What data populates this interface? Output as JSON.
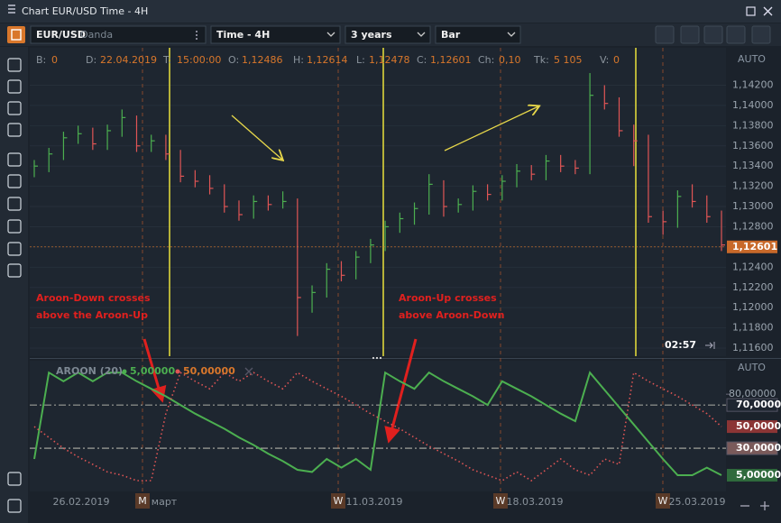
{
  "window": {
    "title": "Chart EUR/USD Time - 4H"
  },
  "toolbar": {
    "symbol": "EUR/USD",
    "broker": "Oanda",
    "timeframe": "Time - 4H",
    "period": "3 years",
    "chart_style": "Bar"
  },
  "info_bar": [
    {
      "k": "B:",
      "v": "0"
    },
    {
      "k": "D:",
      "v": "22.04.2019"
    },
    {
      "k": "T:",
      "v": "15:00:00"
    },
    {
      "k": "O:",
      "v": "1,12486"
    },
    {
      "k": "H:",
      "v": "1,12614"
    },
    {
      "k": "L:",
      "v": "1,12478"
    },
    {
      "k": "C:",
      "v": "1,12601"
    },
    {
      "k": "Ch:",
      "v": "0,10"
    },
    {
      "k": "Tk:",
      "v": "5 105"
    },
    {
      "k": "V:",
      "v": "0"
    }
  ],
  "scale_mode": [
    "AUTO",
    "AUTO"
  ],
  "timer": "02:57",
  "annotations": [
    {
      "lines": [
        "Aroon-Down crosses",
        "above the Aroon-Up"
      ]
    },
    {
      "lines": [
        "Aroon-Up crosses",
        "above Aroon-Down"
      ]
    }
  ],
  "period_markers": [
    "M",
    "W",
    "W",
    "W"
  ],
  "x_labels": [
    "26.02.2019",
    "март",
    "11.03.2019",
    "18.03.2019",
    "25.03.2019"
  ],
  "chart_data": [
    {
      "type": "ohlc",
      "up_color": "#4caf50",
      "down_color": "#e05555",
      "high": [
        1.1346,
        1.1358,
        1.1374,
        1.138,
        1.1378,
        1.1381,
        1.1396,
        1.139,
        1.1371,
        1.1371,
        1.1356,
        1.1336,
        1.1331,
        1.1322,
        1.1306,
        1.1311,
        1.1311,
        1.1315,
        1.1308,
        1.1222,
        1.1244,
        1.1246,
        1.1256,
        1.1268,
        1.1286,
        1.1294,
        1.1304,
        1.1332,
        1.1326,
        1.1308,
        1.1321,
        1.1322,
        1.1331,
        1.1342,
        1.1341,
        1.1351,
        1.1351,
        1.1346,
        1.1432,
        1.142,
        1.1408,
        1.1381,
        1.1371,
        1.1296,
        1.1316,
        1.1322,
        1.1311,
        1.1296
      ],
      "low": [
        1.1329,
        1.1334,
        1.1346,
        1.1362,
        1.1356,
        1.1356,
        1.1369,
        1.1354,
        1.1354,
        1.1346,
        1.1324,
        1.1319,
        1.1312,
        1.1294,
        1.1286,
        1.1288,
        1.1296,
        1.1298,
        1.1172,
        1.1195,
        1.121,
        1.1226,
        1.1228,
        1.1244,
        1.1256,
        1.1274,
        1.1282,
        1.1292,
        1.129,
        1.1294,
        1.1296,
        1.1306,
        1.1306,
        1.1319,
        1.1326,
        1.1326,
        1.1334,
        1.1332,
        1.1332,
        1.1396,
        1.1369,
        1.134,
        1.1284,
        1.1272,
        1.1279,
        1.1299,
        1.1284,
        1.1256
      ],
      "close": [
        1.134,
        1.1352,
        1.1368,
        1.1372,
        1.1362,
        1.1375,
        1.1388,
        1.136,
        1.1365,
        1.1352,
        1.133,
        1.1325,
        1.1318,
        1.13,
        1.1292,
        1.1305,
        1.1302,
        1.1305,
        1.121,
        1.1215,
        1.1238,
        1.1232,
        1.125,
        1.1262,
        1.128,
        1.1288,
        1.1298,
        1.1322,
        1.13,
        1.1302,
        1.1315,
        1.1312,
        1.1325,
        1.1335,
        1.1332,
        1.1345,
        1.134,
        1.1338,
        1.141,
        1.1402,
        1.1375,
        1.1365,
        1.129,
        1.1285,
        1.131,
        1.1305,
        1.129,
        1.1262
      ],
      "ylim": [
        1.1152,
        1.1457
      ],
      "yticks": [
        {
          "value": 1.116,
          "label": "1,11600"
        },
        {
          "value": 1.118,
          "label": "1,11800"
        },
        {
          "value": 1.12,
          "label": "1,12000"
        },
        {
          "value": 1.122,
          "label": "1,12200"
        },
        {
          "value": 1.124,
          "label": "1,12400"
        },
        {
          "value": 1.126,
          "label": "1,12600"
        },
        {
          "value": 1.128,
          "label": "1,12800"
        },
        {
          "value": 1.13,
          "label": "1,13000"
        },
        {
          "value": 1.132,
          "label": "1,13200"
        },
        {
          "value": 1.134,
          "label": "1,13400"
        },
        {
          "value": 1.136,
          "label": "1,13600"
        },
        {
          "value": 1.138,
          "label": "1,13800"
        },
        {
          "value": 1.14,
          "label": "1,14000"
        },
        {
          "value": 1.142,
          "label": "1,14200"
        }
      ],
      "last_price": {
        "value": 1.12601,
        "label": "1,12601"
      }
    },
    {
      "type": "line",
      "title": "AROON (20)",
      "series": [
        {
          "color": "#4caf50",
          "dash": false,
          "current": {
            "value": 5,
            "label": "5,00000"
          },
          "values": [
            20,
            100,
            92,
            100,
            92,
            100,
            100,
            92,
            85,
            78,
            70,
            62,
            55,
            48,
            40,
            33,
            25,
            18,
            10,
            8,
            20,
            12,
            20,
            10,
            100,
            92,
            85,
            100,
            92,
            85,
            78,
            70,
            92,
            85,
            78,
            70,
            62,
            55,
            100,
            84,
            68,
            52,
            36,
            20,
            5,
            5,
            12,
            5
          ]
        },
        {
          "color": "#e05555",
          "dash": true,
          "current": {
            "value": 50,
            "label": "50,00000"
          },
          "values": [
            50,
            40,
            30,
            22,
            15,
            8,
            5,
            0,
            0,
            62,
            100,
            92,
            85,
            100,
            92,
            100,
            92,
            85,
            100,
            92,
            85,
            78,
            70,
            62,
            55,
            48,
            40,
            32,
            25,
            18,
            10,
            5,
            0,
            8,
            0,
            10,
            20,
            10,
            5,
            20,
            15,
            100,
            92,
            85,
            78,
            70,
            62,
            50
          ]
        }
      ],
      "ylim": [
        -10,
        111
      ],
      "yticks": [
        {
          "value": 80,
          "label": "80,00000"
        }
      ],
      "levels": [
        {
          "value": 70,
          "label": "70,00000"
        },
        {
          "value": 30,
          "label": "30,00000"
        }
      ]
    }
  ]
}
